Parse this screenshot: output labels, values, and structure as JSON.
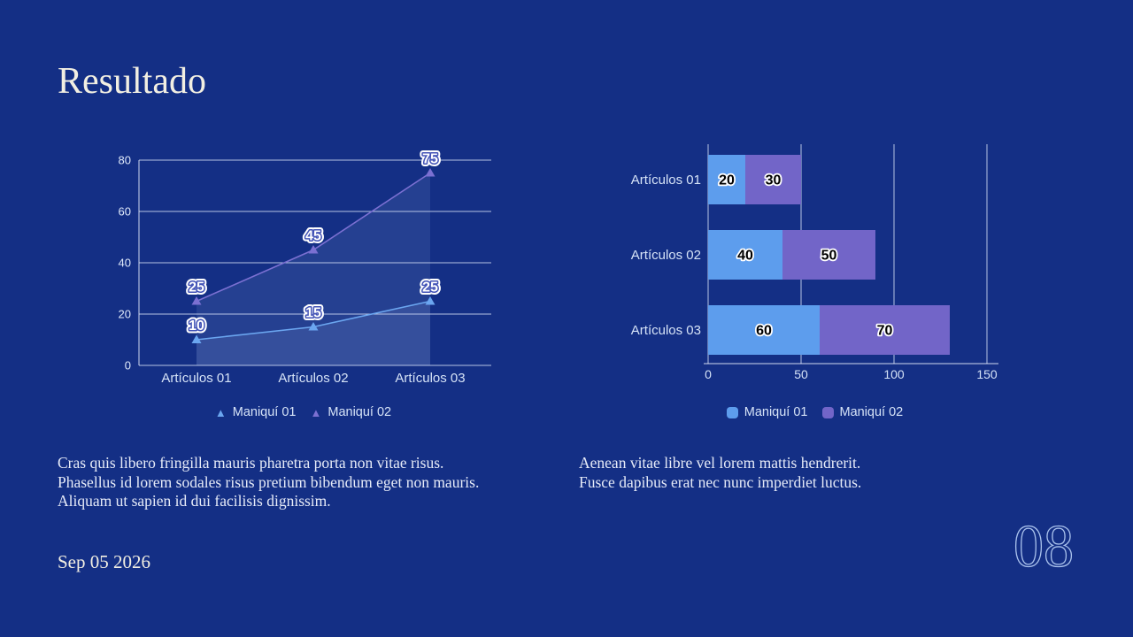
{
  "slide": {
    "title": "Resultado",
    "date": "Sep 05 2026",
    "page_number": "08",
    "left_paragraph": "Cras quis libero fringilla mauris pharetra porta non vitae risus.\nPhasellus id lorem sodales risus pretium bibendum eget non mauris.\nAliquam ut sapien id dui facilisis dignissim.",
    "right_paragraph": "Aenean vitae libre vel lorem mattis hendrerit.\nFusce dapibus erat nec nunc imperdiet luctus."
  },
  "icons": {
    "triangle_marker": "▲"
  },
  "colors": {
    "background": "#142F85",
    "heading_text": "#F2EFE2",
    "body_text": "#E6EBF8",
    "chart_text": "#D6E3F7",
    "tick_text": "#DFE9FA",
    "gridline": "rgba(223,232,250,0.8)",
    "axis_line": "rgba(230,237,252,0.9)",
    "area_fill": "rgba(200,214,252,0.10)",
    "line_label_outline": "#4152B6",
    "page_number_outline": "#A9C1EC",
    "series_blue": "#64A0EE",
    "series_purple": "#7568CC"
  },
  "chart_data": [
    {
      "type": "area",
      "title": "",
      "categories": [
        "Artículos 01",
        "Artículos 02",
        "Artículos 03"
      ],
      "series": [
        {
          "name": "Maniquí 01",
          "color": "#6BA6F0",
          "values": [
            10,
            15,
            25
          ]
        },
        {
          "name": "Maniquí 02",
          "color": "#7B70D2",
          "values": [
            25,
            45,
            75
          ]
        }
      ],
      "xlabel": "",
      "ylabel": "",
      "ylim": [
        0,
        80
      ],
      "yticks": [
        0,
        20,
        40,
        60,
        80
      ],
      "grid": true,
      "legend_position": "bottom",
      "marker": "triangle"
    },
    {
      "type": "bar",
      "orientation": "horizontal",
      "stacked": true,
      "title": "",
      "categories": [
        "Artículos 01",
        "Artículos 02",
        "Artículos 03"
      ],
      "series": [
        {
          "name": "Maniquí 01",
          "color": "#5D9DED",
          "values": [
            20,
            40,
            60
          ]
        },
        {
          "name": "Maniquí 02",
          "color": "#7265C8",
          "values": [
            30,
            50,
            70
          ]
        }
      ],
      "xlabel": "",
      "ylabel": "",
      "xlim": [
        0,
        150
      ],
      "xticks": [
        0,
        50,
        100,
        150
      ],
      "grid": true,
      "legend_position": "bottom"
    }
  ]
}
